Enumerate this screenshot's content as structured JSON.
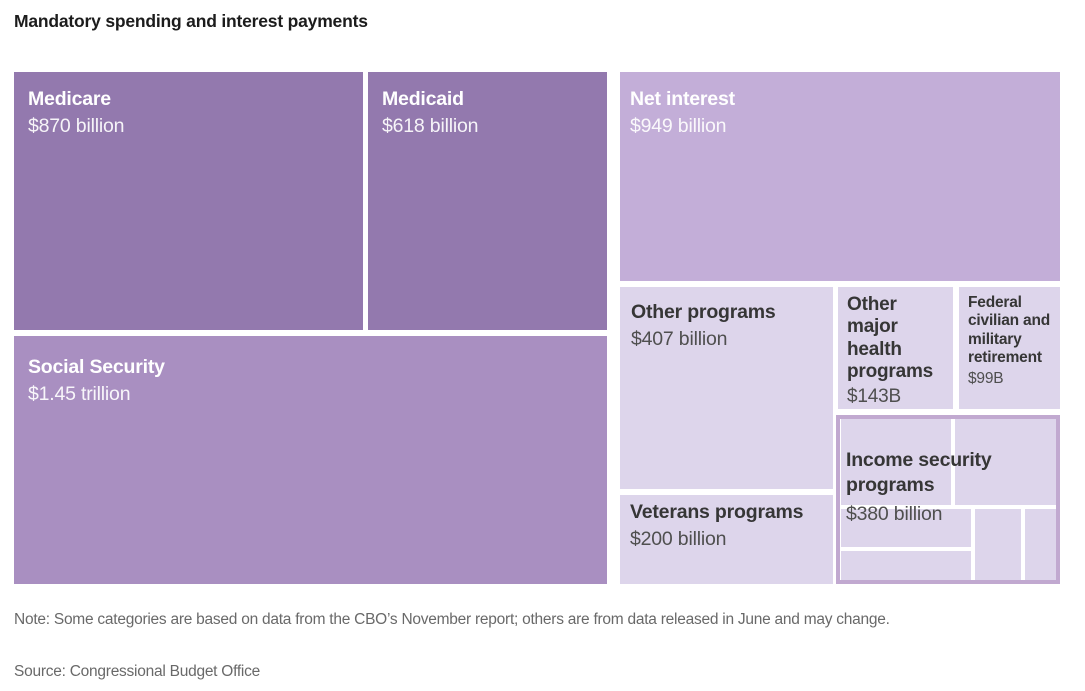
{
  "title": "Mandatory spending and interest payments",
  "note": "Note: Some categories are based on data from the CBO’s November report; others are from data released in June and may change.",
  "source": "Source: Congressional Budget Office",
  "colors": {
    "cell_dark_purple": "#9379AE",
    "cell_medium_purple": "#A98FC1",
    "cell_light_purple": "#C3AED8",
    "cell_pale_purple": "#DDD5EB",
    "group_frame_purple": "#C1A9D0",
    "title_text": "#1c1c1c",
    "note_text": "#696969",
    "label_on_dark": "#ffffff",
    "label_on_light": "#363636",
    "background": "#ffffff"
  },
  "chart_data": {
    "type": "treemap",
    "title": "Mandatory spending and interest payments",
    "unit": "USD billions",
    "legend": "none",
    "note": "Note: Some categories are based on data from the CBO’s November report; others are from data released in June and may change.",
    "source": "Source: Congressional Budget Office",
    "nodes": [
      {
        "label": "Medicare",
        "value_label": "$870 billion",
        "value_billions": 870,
        "shade": "dark"
      },
      {
        "label": "Medicaid",
        "value_label": "$618 billion",
        "value_billions": 618,
        "shade": "dark"
      },
      {
        "label": "Social Security",
        "value_label": "$1.45 trillion",
        "value_billions": 1450,
        "shade": "medium"
      },
      {
        "label": "Net interest",
        "value_label": "$949 billion",
        "value_billions": 949,
        "shade": "light"
      },
      {
        "label": "Other programs",
        "value_label": "$407 billion",
        "value_billions": 407,
        "shade": "pale"
      },
      {
        "label": "Veterans programs",
        "value_label": "$200 billion",
        "value_billions": 200,
        "shade": "pale"
      },
      {
        "label": "Other major health programs",
        "value_label": "$143B",
        "value_billions": 143,
        "shade": "pale"
      },
      {
        "label": "Federal civilian and military retirement",
        "value_label": "$99B",
        "value_billions": 99,
        "shade": "pale"
      },
      {
        "label": "Income security programs",
        "value_label": "$380 billion",
        "value_billions": 380,
        "shade": "pale",
        "framed_group": true,
        "unlabeled_sub_rectangles": 6
      }
    ]
  }
}
